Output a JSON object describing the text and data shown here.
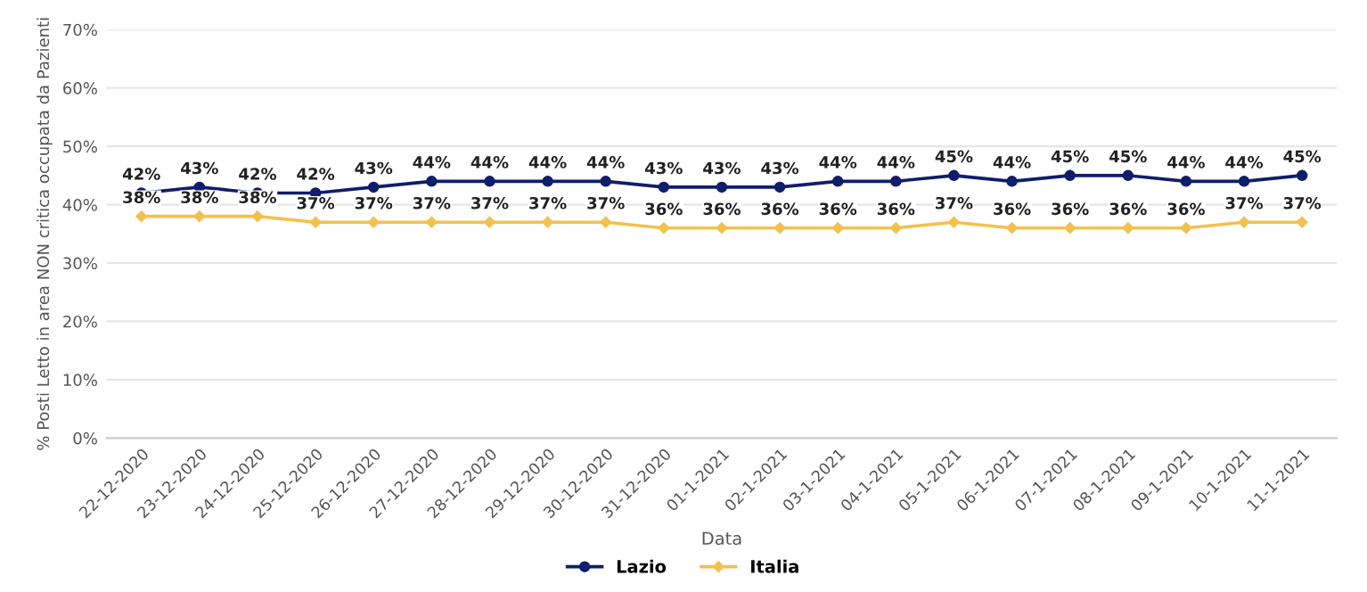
{
  "chart_data": {
    "type": "line",
    "xlabel": "Data",
    "ylabel": "% Posti Letto in area NON critica occupata da Pazienti",
    "categories": [
      "22-12-2020",
      "23-12-2020",
      "24-12-2020",
      "25-12-2020",
      "26-12-2020",
      "27-12-2020",
      "28-12-2020",
      "29-12-2020",
      "30-12-2020",
      "31-12-2020",
      "01-1-2021",
      "02-1-2021",
      "03-1-2021",
      "04-1-2021",
      "05-1-2021",
      "06-1-2021",
      "07-1-2021",
      "08-1-2021",
      "09-1-2021",
      "10-1-2021",
      "11-1-2021"
    ],
    "series": [
      {
        "name": "Lazio",
        "color": "#101d6b",
        "marker": "circle",
        "values": [
          42,
          43,
          42,
          42,
          43,
          44,
          44,
          44,
          44,
          43,
          43,
          43,
          44,
          44,
          45,
          44,
          45,
          45,
          44,
          44,
          45
        ],
        "value_labels": [
          "42%",
          "43%",
          "42%",
          "42%",
          "43%",
          "44%",
          "44%",
          "44%",
          "44%",
          "43%",
          "43%",
          "43%",
          "44%",
          "44%",
          "45%",
          "44%",
          "45%",
          "45%",
          "44%",
          "44%",
          "45%"
        ]
      },
      {
        "name": "Italia",
        "color": "#f2c14e",
        "marker": "diamond",
        "values": [
          38,
          38,
          38,
          37,
          37,
          37,
          37,
          37,
          37,
          36,
          36,
          36,
          36,
          36,
          37,
          36,
          36,
          36,
          36,
          37,
          37
        ],
        "value_labels": [
          "38%",
          "38%",
          "38%",
          "37%",
          "37%",
          "37%",
          "37%",
          "37%",
          "37%",
          "36%",
          "36%",
          "36%",
          "36%",
          "36%",
          "37%",
          "36%",
          "36%",
          "36%",
          "36%",
          "37%",
          "37%"
        ]
      }
    ],
    "ylim": [
      0,
      70
    ],
    "yticks": [
      {
        "value": 0,
        "label": "0%"
      },
      {
        "value": 10,
        "label": "10%"
      },
      {
        "value": 20,
        "label": "20%"
      },
      {
        "value": 30,
        "label": "30%"
      },
      {
        "value": 40,
        "label": "40%"
      },
      {
        "value": 50,
        "label": "50%"
      },
      {
        "value": 60,
        "label": "60%"
      },
      {
        "value": 70,
        "label": "70%"
      }
    ],
    "grid": "y",
    "legend": "bottom",
    "line_style": "solid"
  }
}
